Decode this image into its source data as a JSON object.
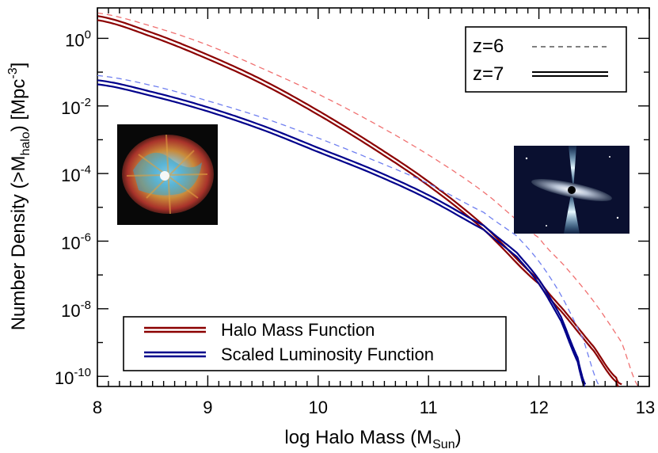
{
  "chart_data": {
    "type": "line",
    "xlabel_main": "log Halo Mass (M",
    "xlabel_sub": "Sun",
    "xlabel_close": ")",
    "ylabel_main": "Number Density (>M",
    "ylabel_sub": "halo",
    "ylabel_mid": ") [Mpc",
    "ylabel_sup": "-3",
    "ylabel_close": "]",
    "xlim": [
      8,
      13
    ],
    "ylim_log10": [
      -10.3,
      0.9
    ],
    "y_scale": "log",
    "x_ticks": [
      "8",
      "9",
      "10",
      "11",
      "12",
      "13"
    ],
    "y_ticks": [
      {
        "base": "10",
        "exp": "0",
        "log": 0
      },
      {
        "base": "10",
        "exp": "-2",
        "log": -2
      },
      {
        "base": "10",
        "exp": "-4",
        "log": -4
      },
      {
        "base": "10",
        "exp": "-6",
        "log": -6
      },
      {
        "base": "10",
        "exp": "-8",
        "log": -8
      },
      {
        "base": "10",
        "exp": "-10",
        "log": -10
      }
    ],
    "legend_series": [
      {
        "name": "Halo Mass Function",
        "color": "#8b0000"
      },
      {
        "name": "Scaled Luminosity Function",
        "color": "#00008b"
      }
    ],
    "legend_styles": [
      {
        "name": "z=6",
        "style": "dashed"
      },
      {
        "name": "z=7",
        "style": "double"
      }
    ],
    "series": [
      {
        "series_ref": "Halo Mass Function",
        "z_ref": "z=7",
        "color": "#8b0000",
        "style": "double",
        "x": [
          8.0,
          8.5,
          9.0,
          9.5,
          10.0,
          10.5,
          11.0,
          11.5,
          12.0,
          12.25,
          12.5,
          12.7,
          12.75
        ],
        "log_y": [
          0.6,
          0.1,
          -0.55,
          -1.3,
          -2.2,
          -3.2,
          -4.3,
          -5.6,
          -7.2,
          -8.2,
          -9.2,
          -10.1,
          -10.3
        ]
      },
      {
        "series_ref": "Halo Mass Function",
        "z_ref": "z=6",
        "color": "#f07070",
        "style": "dashed",
        "x": [
          8.0,
          8.5,
          9.0,
          9.5,
          10.0,
          10.5,
          11.0,
          11.5,
          12.0,
          12.25,
          12.5,
          12.75,
          12.9
        ],
        "log_y": [
          0.75,
          0.35,
          -0.2,
          -0.9,
          -1.65,
          -2.5,
          -3.45,
          -4.55,
          -5.9,
          -6.8,
          -7.8,
          -9.0,
          -10.3
        ]
      },
      {
        "series_ref": "Scaled Luminosity Function",
        "z_ref": "z=7",
        "color": "#00008b",
        "style": "double",
        "x": [
          8.0,
          8.5,
          9.0,
          9.5,
          10.0,
          10.5,
          11.0,
          11.5,
          11.8,
          12.0,
          12.2,
          12.35,
          12.42
        ],
        "log_y": [
          -1.3,
          -1.65,
          -2.1,
          -2.65,
          -3.3,
          -3.95,
          -4.7,
          -5.6,
          -6.4,
          -7.2,
          -8.3,
          -9.5,
          -10.3
        ]
      },
      {
        "series_ref": "Scaled Luminosity Function",
        "z_ref": "z=6",
        "color": "#6f7ff0",
        "style": "dashed",
        "x": [
          8.0,
          8.5,
          9.0,
          9.5,
          10.0,
          10.5,
          11.0,
          11.5,
          11.8,
          12.0,
          12.2,
          12.4,
          12.55
        ],
        "log_y": [
          -1.1,
          -1.4,
          -1.85,
          -2.35,
          -2.95,
          -3.6,
          -4.3,
          -5.15,
          -5.85,
          -6.6,
          -7.6,
          -8.9,
          -10.3
        ]
      }
    ],
    "images": [
      {
        "name": "crab-nebula-image",
        "description_icon": "nebula-photo"
      },
      {
        "name": "black-hole-jet-image",
        "description_icon": "quasar-jet-illustration"
      }
    ],
    "grid": false
  }
}
